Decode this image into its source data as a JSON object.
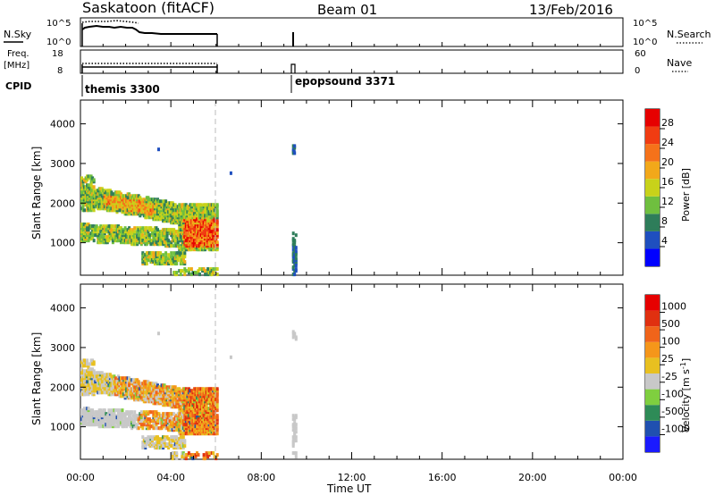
{
  "header": {
    "station": "Saskatoon (fitACF)",
    "beam": "Beam 01",
    "date": "13/Feb/2016"
  },
  "top_panels": {
    "nsky_label": "N.Sky",
    "nsky_ticks": [
      "10^5",
      "10^0"
    ],
    "nsearch_label": "N.Search",
    "nsearch_ticks": [
      "10^5",
      "10^0"
    ],
    "freq_label": "Freq.",
    "freq_unit": "[MHz]",
    "freq_ticks": [
      "18",
      "8"
    ],
    "nave_label": "Nave",
    "nave_ticks": [
      "60",
      "0"
    ],
    "cpid_label": "CPID",
    "cpid_modes": [
      {
        "name": "themis 3300",
        "start_hr": 0.0
      },
      {
        "name": "epopsound 3371",
        "start_hr": 9.3
      }
    ]
  },
  "colors": {
    "power_scale": [
      "#0000ff",
      "#1f4fbf",
      "#2e7d5a",
      "#6fbf3f",
      "#c8d21a",
      "#f2a81a",
      "#f5721a",
      "#f03c12",
      "#e60000"
    ],
    "velocity_scale": [
      "#1a1aff",
      "#2050b0",
      "#2e8b57",
      "#7fcf3f",
      "#c8c8c8",
      "#e8c020",
      "#f5961a",
      "#f0641a",
      "#e03010",
      "#e60000"
    ]
  },
  "chart_data": [
    {
      "type": "heatmap",
      "title": "Power",
      "xlabel": "Time UT",
      "ylabel": "Slant Range [km]",
      "x_ticks": [
        "00:00",
        "04:00",
        "08:00",
        "12:00",
        "16:00",
        "20:00",
        "00:00"
      ],
      "y_ticks": [
        "1000",
        "2000",
        "3000",
        "4000"
      ],
      "xlim": [
        0,
        24
      ],
      "ylim": [
        180,
        4600
      ],
      "colorbar_label": "Power [dB]",
      "colorbar_ticks": [
        "4",
        "8",
        "12",
        "16",
        "20",
        "24",
        "28"
      ],
      "colorbar_range": [
        0,
        30
      ],
      "data_extent_hr": [
        0,
        6.0
      ],
      "sparse_extent_hr": [
        9.35,
        9.5
      ],
      "regions": [
        {
          "t_start": 0.0,
          "t_end": 6.0,
          "r_min": 1100,
          "r_max": 1900,
          "level": "mid"
        },
        {
          "t_start": 4.5,
          "t_end": 6.0,
          "r_min": 900,
          "r_max": 1500,
          "level": "high"
        },
        {
          "t_start": 2.8,
          "t_end": 4.8,
          "r_min": 450,
          "r_max": 750,
          "level": "low"
        }
      ]
    },
    {
      "type": "heatmap",
      "title": "Velocity",
      "xlabel": "Time UT",
      "ylabel": "Slant Range [km]",
      "x_ticks": [
        "00:00",
        "04:00",
        "08:00",
        "12:00",
        "16:00",
        "20:00",
        "00:00"
      ],
      "y_ticks": [
        "1000",
        "2000",
        "3000",
        "4000"
      ],
      "xlim": [
        0,
        24
      ],
      "ylim": [
        180,
        4600
      ],
      "colorbar_label": "Velocity [m s^-1]",
      "colorbar_ticks": [
        "1000",
        "500",
        "100",
        "25",
        "-25",
        "-100",
        "-500",
        "-1000"
      ],
      "data_extent_hr": [
        0,
        6.0
      ],
      "sparse_extent_hr": [
        9.35,
        9.5
      ]
    }
  ]
}
